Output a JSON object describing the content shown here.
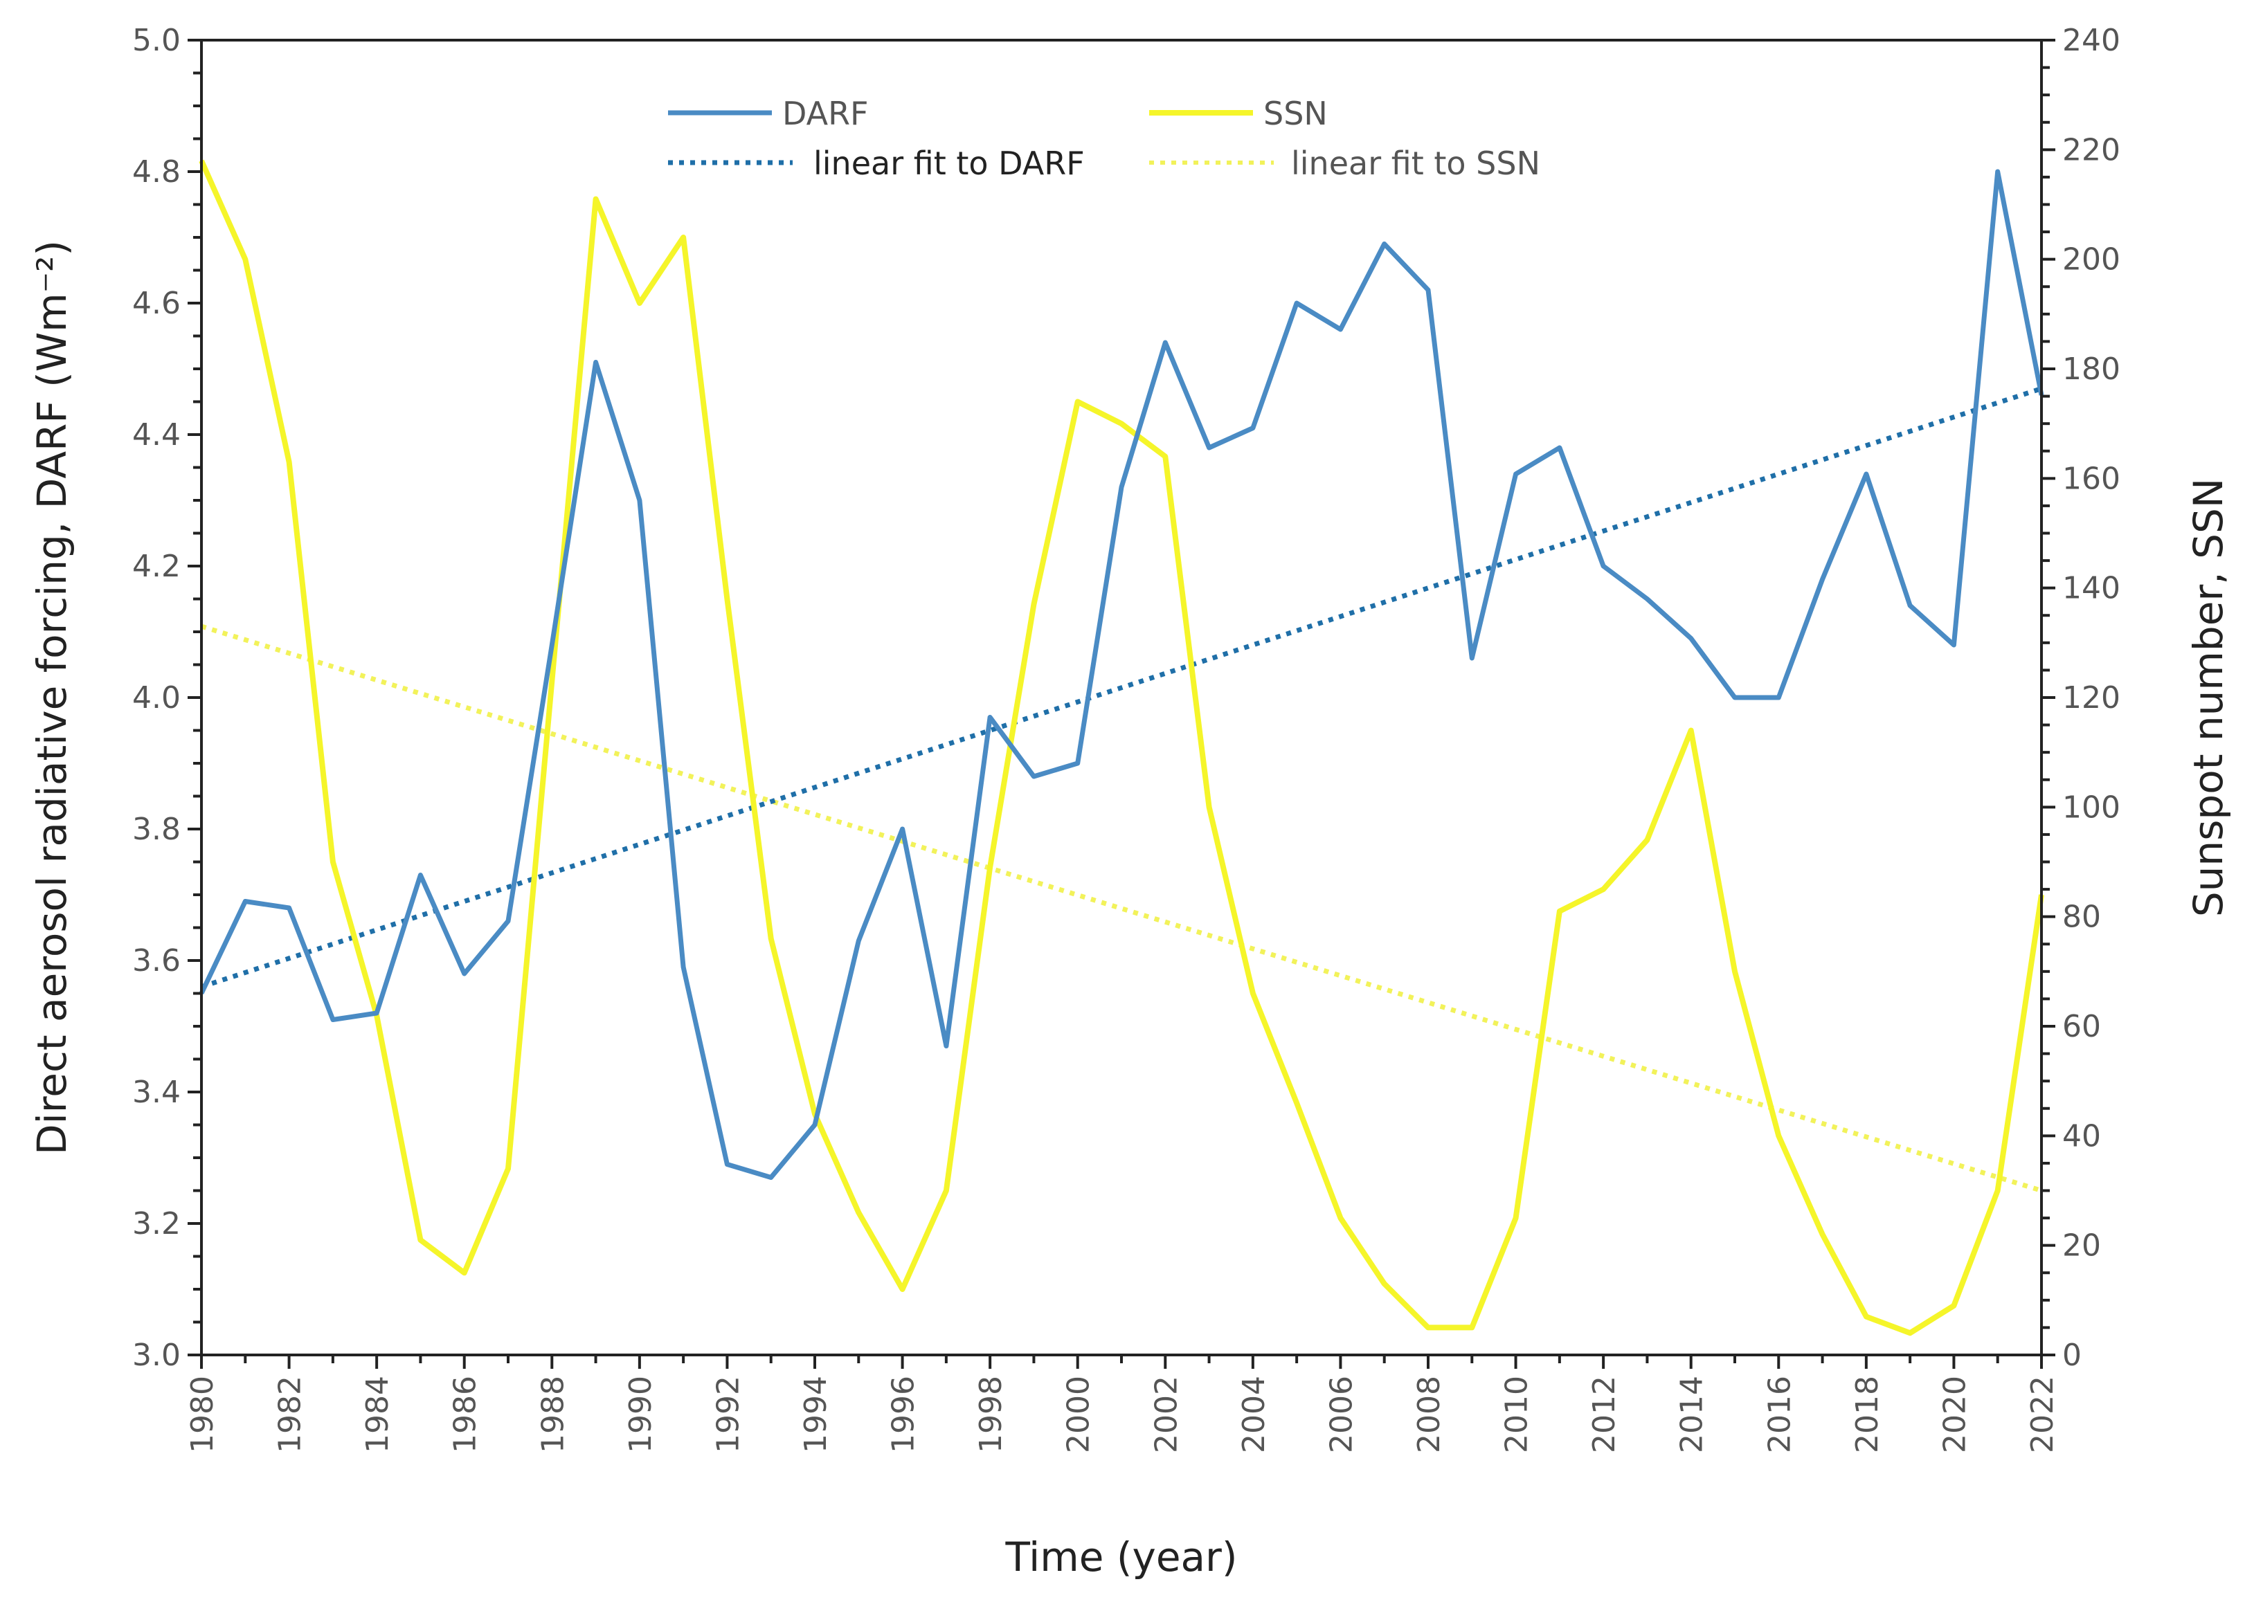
{
  "chart_data": {
    "type": "line",
    "xlabel": "Time (year)",
    "ylabel_left": "Direct aerosol radiative forcing, DARF (Wm⁻²)",
    "ylabel_right": "Sunspot number, SSN",
    "xlim": [
      1980,
      2022
    ],
    "ylim_left": [
      3.0,
      5.0
    ],
    "ylim_right": [
      0,
      240
    ],
    "x_ticks": [
      "1980",
      "1982",
      "1984",
      "1986",
      "1988",
      "1990",
      "1992",
      "1994",
      "1996",
      "1998",
      "2000",
      "2002",
      "2004",
      "2006",
      "2008",
      "2010",
      "2012",
      "2014",
      "2016",
      "2018",
      "2020",
      "2022"
    ],
    "y_ticks_left": [
      "3.0",
      "3.2",
      "3.4",
      "3.6",
      "3.8",
      "4.0",
      "4.2",
      "4.4",
      "4.6",
      "4.8",
      "5.0"
    ],
    "y_ticks_right": [
      "0",
      "20",
      "40",
      "60",
      "80",
      "100",
      "120",
      "140",
      "160",
      "180",
      "200",
      "220",
      "240"
    ],
    "legend_position": "top-center",
    "x": [
      1980,
      1981,
      1982,
      1983,
      1984,
      1985,
      1986,
      1987,
      1988,
      1989,
      1990,
      1991,
      1992,
      1993,
      1994,
      1995,
      1996,
      1997,
      1998,
      1999,
      2000,
      2001,
      2002,
      2003,
      2004,
      2005,
      2006,
      2007,
      2008,
      2009,
      2010,
      2011,
      2012,
      2013,
      2014,
      2015,
      2016,
      2017,
      2018,
      2019,
      2020,
      2021,
      2022
    ],
    "series": [
      {
        "name": "DARF",
        "axis": "left",
        "color": "#4a8bc4",
        "style": "solid",
        "values": [
          3.55,
          3.69,
          3.68,
          3.51,
          3.52,
          3.73,
          3.58,
          3.66,
          4.08,
          4.51,
          4.3,
          3.59,
          3.29,
          3.27,
          3.35,
          3.63,
          3.8,
          3.47,
          3.97,
          3.88,
          3.9,
          4.32,
          4.54,
          4.38,
          4.41,
          4.6,
          4.56,
          4.69,
          4.62,
          4.06,
          4.34,
          4.38,
          4.2,
          4.15,
          4.09,
          4.0,
          4.0,
          4.18,
          4.34,
          4.14,
          4.08,
          4.8,
          4.46
        ]
      },
      {
        "name": "SSN",
        "axis": "right",
        "color": "#f5f52a",
        "style": "solid",
        "values": [
          218,
          200,
          163,
          90,
          62,
          21,
          15,
          34,
          123,
          211,
          192,
          204,
          138,
          76,
          44,
          26,
          12,
          30,
          89,
          137,
          174,
          170,
          164,
          100,
          66,
          46,
          25,
          13,
          5,
          5,
          25,
          81,
          85,
          94,
          114,
          70,
          40,
          22,
          7,
          4,
          9,
          30,
          84
        ]
      },
      {
        "name": "linear fit to DARF",
        "axis": "left",
        "color": "#1f6fa8",
        "style": "dotted",
        "x": [
          1980,
          2022
        ],
        "values": [
          3.56,
          4.47
        ]
      },
      {
        "name": "linear fit to SSN",
        "axis": "right",
        "color": "#f2f25a",
        "style": "dotted",
        "x": [
          1980,
          2022
        ],
        "values": [
          133,
          30
        ]
      }
    ]
  }
}
